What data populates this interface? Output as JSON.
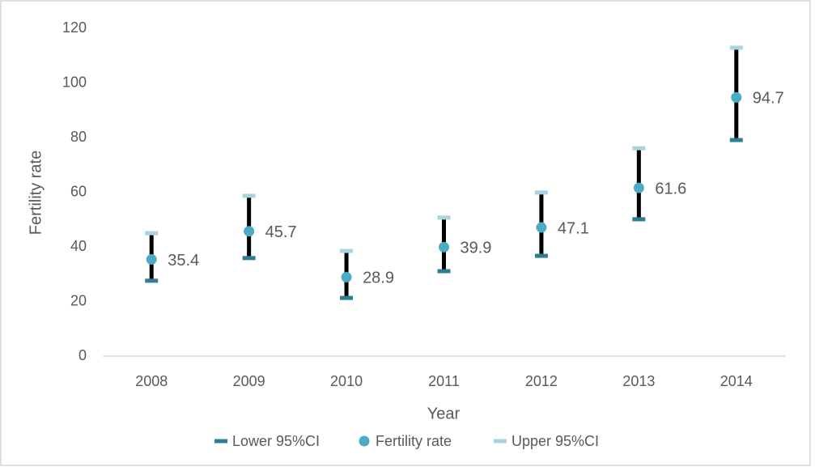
{
  "chart_data": {
    "type": "errorbar",
    "xlabel": "Year",
    "ylabel": "Fertility rate",
    "categories": [
      "2008",
      "2009",
      "2010",
      "2011",
      "2012",
      "2013",
      "2014"
    ],
    "series": [
      {
        "name": "Lower 95%CI",
        "color": "#2e7d95",
        "values": [
          27.6,
          35.9,
          21.3,
          31.1,
          36.7,
          50.1,
          79.1
        ]
      },
      {
        "name": "Fertility rate",
        "color": "#4bacc6",
        "values": [
          35.4,
          45.7,
          28.9,
          39.9,
          47.1,
          61.6,
          94.7
        ],
        "data_labels": true
      },
      {
        "name": "Upper 95%CI",
        "color": "#a8d4e0",
        "values": [
          45.0,
          58.7,
          38.5,
          50.7,
          59.9,
          76.1,
          112.9
        ]
      }
    ],
    "bar_color": "#000000",
    "ylim": [
      0,
      120
    ],
    "yticks": [
      0,
      20,
      40,
      60,
      80,
      100,
      120
    ],
    "grid": false,
    "legend": "bottom"
  }
}
